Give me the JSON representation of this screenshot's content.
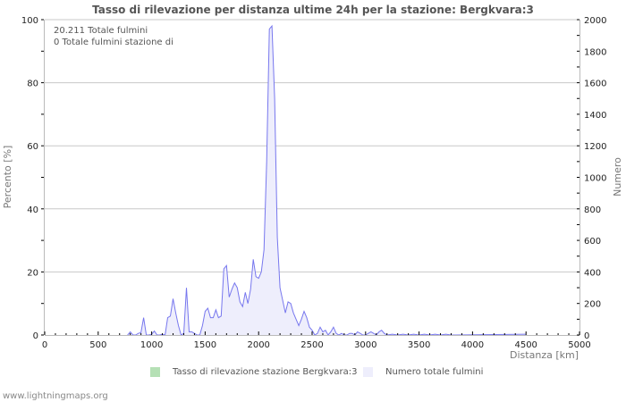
{
  "title": "Tasso di rilevazione per distanza ultime 24h per la stazione: Bergkvara:3",
  "info": {
    "line1": "20.211 Totale fulmini",
    "line2": "0 Totale fulmini stazione di"
  },
  "legend": [
    {
      "label": "Tasso di rilevazione stazione Bergkvara:3",
      "color": "#b5e0b5"
    },
    {
      "label": "Numero totale fulmini",
      "color": "#eeeefc"
    }
  ],
  "footer": "www.lightningmaps.org",
  "colors": {
    "line": "#7777ee",
    "fill": "#eeeefc",
    "grid": "#c8c8c8",
    "axis": "#bbbbbb"
  },
  "chart_data": {
    "type": "area",
    "title": "Tasso di rilevazione per distanza ultime 24h per la stazione: Bergkvara:3",
    "xlabel": "Distanza   [km]",
    "ylabel_left": "Percento   [%]",
    "ylabel_right": "Numero",
    "xlim": [
      0,
      5000
    ],
    "ylim_left": [
      0,
      100
    ],
    "ylim_right": [
      0,
      2000
    ],
    "x_ticks": [
      "0",
      "500",
      "1000",
      "1500",
      "2000",
      "2500",
      "3000",
      "3500",
      "4000",
      "4500",
      "5000"
    ],
    "y_left_ticks": [
      "0",
      "20",
      "40",
      "60",
      "80",
      "100"
    ],
    "y_right_ticks": [
      "0",
      "200",
      "400",
      "600",
      "800",
      "1000",
      "1200",
      "1400",
      "1600",
      "1800",
      "2000"
    ],
    "grid": true,
    "legend_position": "bottom",
    "series": [
      {
        "name": "Tasso di rilevazione stazione Bergkvara:3",
        "axis": "left",
        "values": []
      },
      {
        "name": "Numero totale fulmini",
        "axis": "right",
        "x": [
          775,
          800,
          825,
          850,
          875,
          900,
          925,
          950,
          975,
          1000,
          1025,
          1050,
          1075,
          1100,
          1125,
          1150,
          1175,
          1200,
          1225,
          1250,
          1275,
          1300,
          1325,
          1350,
          1375,
          1400,
          1425,
          1450,
          1475,
          1500,
          1525,
          1550,
          1575,
          1600,
          1625,
          1650,
          1675,
          1700,
          1725,
          1750,
          1775,
          1800,
          1825,
          1850,
          1875,
          1900,
          1925,
          1950,
          1975,
          2000,
          2025,
          2050,
          2075,
          2100,
          2125,
          2150,
          2175,
          2200,
          2225,
          2250,
          2275,
          2300,
          2325,
          2350,
          2375,
          2400,
          2425,
          2450,
          2475,
          2500,
          2525,
          2550,
          2575,
          2600,
          2625,
          2650,
          2675,
          2700,
          2725,
          2750,
          2775,
          2800,
          2825,
          2850,
          2875,
          2900,
          2925,
          2950,
          2975,
          3000,
          3025,
          3050,
          3075,
          3100,
          3125,
          3150,
          3175,
          3200,
          3250,
          3300,
          3350,
          3400,
          3450,
          3500,
          3550,
          3600,
          3650,
          3700,
          3750,
          3800,
          4500
        ],
        "values": [
          0,
          20,
          0,
          0,
          10,
          15,
          110,
          0,
          0,
          5,
          25,
          0,
          0,
          5,
          0,
          110,
          120,
          230,
          140,
          60,
          0,
          10,
          300,
          20,
          20,
          10,
          0,
          0,
          60,
          150,
          170,
          110,
          110,
          160,
          110,
          120,
          420,
          440,
          240,
          290,
          330,
          300,
          210,
          180,
          270,
          200,
          290,
          480,
          370,
          360,
          400,
          540,
          1100,
          1940,
          1960,
          1500,
          620,
          300,
          220,
          140,
          210,
          200,
          140,
          100,
          60,
          100,
          150,
          110,
          50,
          30,
          0,
          10,
          50,
          20,
          30,
          0,
          20,
          50,
          10,
          0,
          10,
          0,
          0,
          10,
          10,
          0,
          20,
          10,
          0,
          0,
          10,
          20,
          10,
          0,
          20,
          30,
          10,
          0,
          5,
          0,
          5,
          0,
          5,
          0,
          5,
          0,
          5,
          0,
          5,
          0,
          5
        ]
      }
    ]
  }
}
